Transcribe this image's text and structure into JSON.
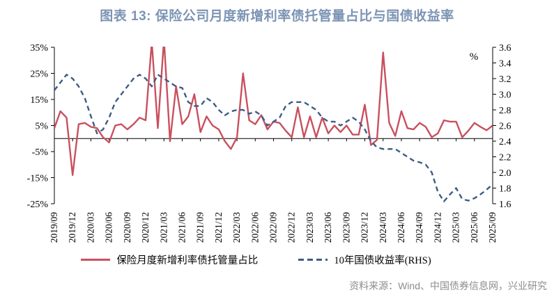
{
  "header": {
    "title": "图表 13: 保险公司月度新增利率债托管量占比与国债收益率"
  },
  "footer": {
    "source": "资料来源：Wind、中国债券信息网，兴业研究"
  },
  "legend": [
    {
      "label": "保险月度新增利率债托管量占比",
      "style": "solid",
      "color": "#C9505E"
    },
    {
      "label": "10年国债收益率(RHS)",
      "style": "dashed",
      "color": "#3D5C85"
    }
  ],
  "chart_data": {
    "type": "line",
    "title": "图表 13: 保险公司月度新增利率债托管量占比与国债收益率",
    "frequency": "monthly",
    "x": [
      "2019/09",
      "2019/10",
      "2019/11",
      "2019/12",
      "2020/01",
      "2020/02",
      "2020/03",
      "2020/04",
      "2020/05",
      "2020/06",
      "2020/07",
      "2020/08",
      "2020/09",
      "2020/10",
      "2020/11",
      "2020/12",
      "2021/01",
      "2021/02",
      "2021/03",
      "2021/04",
      "2021/05",
      "2021/06",
      "2021/07",
      "2021/08",
      "2021/09",
      "2021/10",
      "2021/11",
      "2021/12",
      "2022/01",
      "2022/02",
      "2022/03",
      "2022/04",
      "2022/05",
      "2022/06",
      "2022/07",
      "2022/08",
      "2022/09",
      "2022/10",
      "2022/11",
      "2022/12",
      "2023/01",
      "2023/02",
      "2023/03",
      "2023/04",
      "2023/05",
      "2023/06",
      "2023/07",
      "2023/08",
      "2023/09",
      "2023/10",
      "2023/11",
      "2023/12",
      "2024/01",
      "2024/02",
      "2024/03",
      "2024/04",
      "2024/05",
      "2024/06",
      "2024/07",
      "2024/08",
      "2024/09",
      "2024/10",
      "2024/11",
      "2024/12",
      "2025/01",
      "2025/02",
      "2025/03",
      "2025/04",
      "2025/05",
      "2025/06",
      "2025/07",
      "2025/08",
      "2025/09"
    ],
    "x_tick_labels": [
      "2019/09",
      "2019/12",
      "2020/03",
      "2020/06",
      "2020/09",
      "2020/12",
      "2021/03",
      "2021/06",
      "2021/09",
      "2021/12",
      "2022/03",
      "2022/06",
      "2022/09",
      "2022/12",
      "2023/03",
      "2023/06",
      "2023/09",
      "2023/12",
      "2024/03",
      "2024/06",
      "2024/09",
      "2024/12",
      "2025/03",
      "2025/06",
      "2025/09"
    ],
    "x_tick_every_n_months": 3,
    "series": [
      {
        "name": "保险月度新增利率债托管量占比",
        "axis": "left",
        "style": "solid",
        "color": "#C9505E",
        "note": "values in %, spikes at 2021/01 and 2021/03 are clipped above the 35% axis top",
        "values": [
          4,
          10.5,
          8,
          -14,
          5.5,
          6,
          4.5,
          4,
          0.5,
          -1.5,
          5,
          5.5,
          3.5,
          5.5,
          8,
          7,
          37,
          4,
          38,
          -1,
          20,
          5.5,
          8.5,
          17,
          2.5,
          8.5,
          5,
          3.5,
          -1,
          -4,
          0.5,
          25,
          7,
          5.5,
          9,
          3.5,
          6.5,
          6,
          3,
          0.5,
          12,
          0.5,
          8.5,
          0.5,
          8,
          2,
          5,
          2.5,
          5,
          1.5,
          1.5,
          13,
          -2.5,
          -0.5,
          33,
          6,
          1,
          10.5,
          4,
          3.5,
          6,
          4.5,
          0.5,
          2,
          7,
          6.5,
          6.5,
          0.5,
          3,
          6,
          4.5,
          3.2,
          5
        ]
      },
      {
        "name": "10年国债收益率(RHS)",
        "axis": "right",
        "style": "dashed",
        "color": "#3D5C85",
        "note": "values in %",
        "values": [
          3.05,
          3.15,
          3.25,
          3.2,
          3.1,
          2.95,
          2.72,
          2.5,
          2.55,
          2.7,
          2.9,
          3.0,
          3.1,
          3.2,
          3.25,
          3.2,
          3.1,
          3.25,
          3.2,
          3.15,
          3.1,
          3.08,
          2.9,
          2.85,
          2.85,
          2.95,
          2.9,
          2.8,
          2.73,
          2.78,
          2.8,
          2.8,
          2.75,
          2.78,
          2.73,
          2.6,
          2.65,
          2.7,
          2.85,
          2.9,
          2.9,
          2.9,
          2.85,
          2.8,
          2.7,
          2.65,
          2.65,
          2.6,
          2.65,
          2.7,
          2.65,
          2.55,
          2.4,
          2.32,
          2.3,
          2.3,
          2.3,
          2.25,
          2.2,
          2.15,
          2.13,
          2.1,
          2.0,
          1.75,
          1.63,
          1.72,
          1.8,
          1.66,
          1.64,
          1.67,
          1.72,
          1.78,
          1.85
        ]
      }
    ],
    "left_axis": {
      "tick_labels": [
        "35%",
        "25%",
        "15%",
        "5%",
        "-5%",
        "-15%",
        "-25%"
      ],
      "min": -25,
      "max": 35,
      "unit": "%"
    },
    "right_axis": {
      "tick_labels": [
        "3.6",
        "3.4",
        "3.2",
        "3.0",
        "2.8",
        "2.6",
        "2.4",
        "2.2",
        "2.0",
        "1.8",
        "1.6"
      ],
      "min": 1.6,
      "max": 3.6,
      "unit_label": "%"
    },
    "grid": false,
    "legend_position": "bottom",
    "zero_baseline": true
  }
}
